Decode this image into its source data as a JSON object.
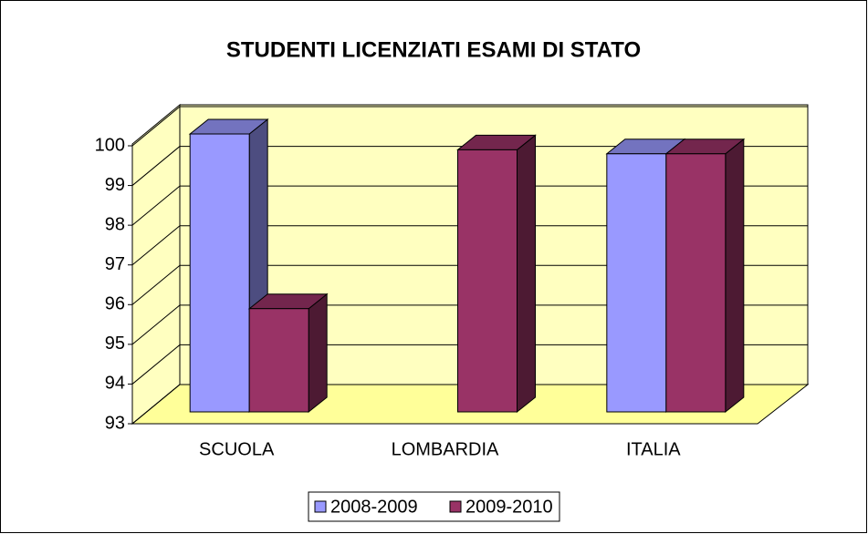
{
  "chart_data": {
    "type": "bar3d",
    "title": "STUDENTI LICENZIATI ESAMI DI STATO",
    "categories": [
      "SCUOLA",
      "LOMBARDIA",
      "ITALIA"
    ],
    "series": [
      {
        "name": "2008-2009",
        "color": "#9999ff",
        "values": [
          100,
          null,
          99.5
        ]
      },
      {
        "name": "2009-2010",
        "color": "#993366",
        "values": [
          95.6,
          99.6,
          99.5
        ]
      }
    ],
    "ylim": [
      93,
      100
    ],
    "yticks": [
      93,
      94,
      95,
      96,
      97,
      98,
      99,
      100
    ],
    "grid": true,
    "legend": "bottom"
  }
}
